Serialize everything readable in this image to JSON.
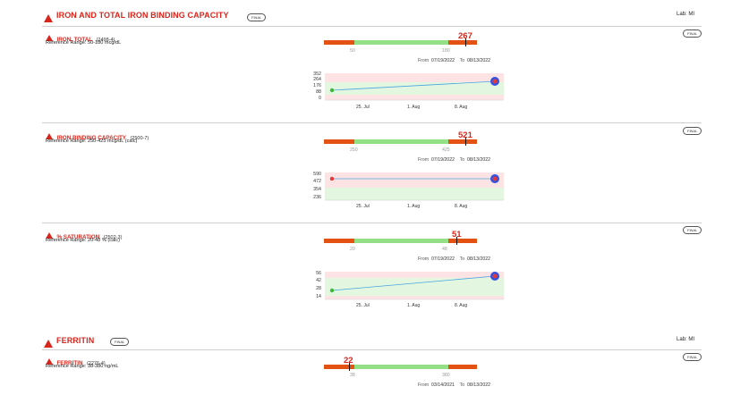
{
  "panels": {
    "iron_panel": {
      "title": "IRON AND TOTAL IRON BINDING CAPACITY",
      "badge": "FINAL",
      "lab": "Lab: MI"
    },
    "ferritin_panel": {
      "title": "FERRITIN",
      "badge": "FINAL",
      "lab": "Lab: MI"
    }
  },
  "tests": {
    "iron": {
      "name": "IRON, TOTAL",
      "code": "(2498-4)",
      "ref": "Reference Range: 50-180 mcg/dL",
      "badge": "FINAL",
      "value": "267",
      "low": "50",
      "high": "180",
      "from_label": "From",
      "from": "07/19/2022",
      "to_label": "To",
      "to": "08/13/2022",
      "yticks": [
        "352",
        "264",
        "176",
        "88",
        "0"
      ],
      "xticks": [
        "25. Jul",
        "1. Aug",
        "8. Aug"
      ]
    },
    "tibc": {
      "name": "IRON BINDING CAPACITY",
      "code": "(2500-7)",
      "ref": "Reference Range: 250-425 mcg/dL (calc)",
      "badge": "FINAL",
      "value": "521",
      "low": "250",
      "high": "425",
      "from_label": "From",
      "from": "07/19/2022",
      "to_label": "To",
      "to": "08/13/2022",
      "yticks": [
        "590",
        "472",
        "354",
        "236"
      ],
      "xticks": [
        "25. Jul",
        "1. Aug",
        "8. Aug"
      ]
    },
    "saturation": {
      "name": "% SATURATION",
      "code": "(2502-3)",
      "ref": "Reference Range: 20-48 % (calc)",
      "badge": "FINAL",
      "value": "51",
      "low": "20",
      "high": "48",
      "from_label": "From",
      "from": "07/19/2022",
      "to_label": "To",
      "to": "08/13/2022",
      "yticks": [
        "56",
        "42",
        "28",
        "14"
      ],
      "xticks": [
        "25. Jul",
        "1. Aug",
        "8. Aug"
      ]
    },
    "ferritin": {
      "name": "FERRITIN",
      "code": "(2276-4)",
      "ref": "Reference Range: 38-380 ng/mL",
      "badge": "FINAL",
      "value": "22",
      "low": "38",
      "high": "380",
      "from_label": "From",
      "from": "03/14/2021",
      "to_label": "To",
      "to": "08/13/2022"
    }
  },
  "colors": {
    "accent": "#d9261c",
    "out_of_range": "#e35213",
    "in_range": "#93e087",
    "line": "#4aa3e0"
  }
}
